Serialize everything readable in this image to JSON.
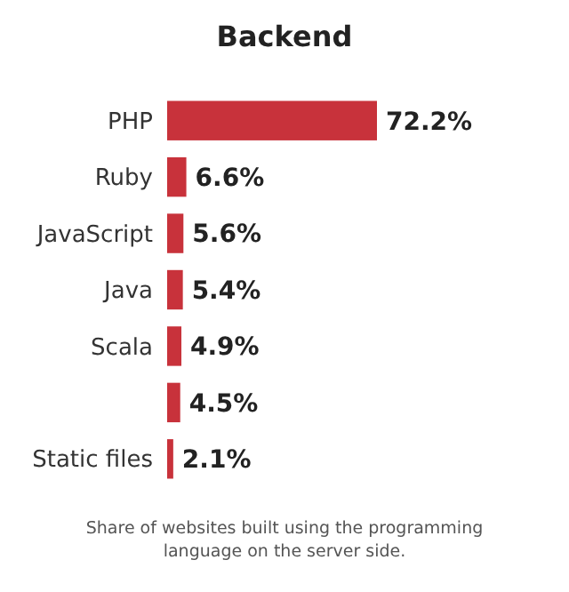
{
  "chart_data": {
    "type": "bar",
    "orientation": "horizontal",
    "title": "Backend",
    "categories": [
      "PHP",
      "Ruby",
      "JavaScript",
      "Java",
      "Scala",
      null,
      "Static files"
    ],
    "values": [
      72.2,
      6.6,
      5.6,
      5.4,
      4.9,
      4.5,
      2.1
    ],
    "value_labels": [
      "72.2%",
      "6.6%",
      "5.6%",
      "5.4%",
      "4.9%",
      "4.5%",
      "2.1%"
    ],
    "color": "#c8323b",
    "annotations": [
      "Share of websites built using the programming language on the server side."
    ]
  }
}
